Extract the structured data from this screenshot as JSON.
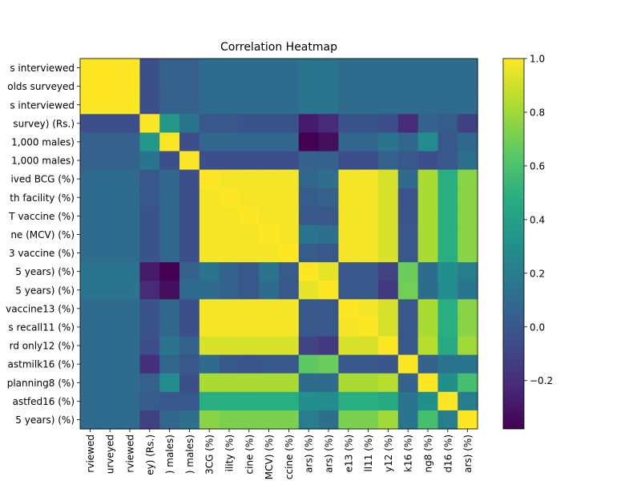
{
  "chart_data": {
    "type": "heatmap",
    "title": "Correlation Heatmap",
    "colormap": "viridis",
    "colorbar": {
      "min": -0.38,
      "max": 1.0,
      "ticks": [
        "1.0",
        "0.8",
        "0.6",
        "0.4",
        "0.2",
        "0.0",
        "−0.2"
      ],
      "tick_values": [
        1.0,
        0.8,
        0.6,
        0.4,
        0.2,
        0.0,
        -0.2
      ]
    },
    "row_labels": [
      "s interviewed",
      "olds surveyed",
      "s interviewed",
      " survey) (Rs.)",
      "1,000 males)",
      "1,000 males)",
      "ived BCG (%)",
      "th facility (%)",
      "T vaccine (%)",
      "ne (MCV) (%)",
      "3 vaccine (%)",
      " 5 years) (%)",
      " 5 years) (%)",
      "vaccine13 (%)",
      "s recall11 (%)",
      "rd only12 (%)",
      "astmilk16 (%)",
      "planning8 (%)",
      "astfed16 (%)",
      " 5 years) (%)"
    ],
    "col_labels": [
      "rviewed",
      "urveyed",
      "rviewed",
      "ey) (Rs.)",
      ") males)",
      ") males)",
      "3CG (%)",
      "ility (%)",
      "cine (%)",
      "MCV) (%)",
      "ccine (%)",
      "ars) (%)",
      "ars) (%)",
      "e13 (%)",
      "ll11 (%)",
      "y12 (%)",
      "k16 (%)",
      "ng8 (%)",
      "d16 (%)",
      "ars) (%)"
    ],
    "values": [
      [
        1.0,
        1.0,
        1.0,
        -0.05,
        0.05,
        0.05,
        0.1,
        0.1,
        0.1,
        0.1,
        0.1,
        0.15,
        0.15,
        0.1,
        0.1,
        0.1,
        0.1,
        0.1,
        0.1,
        0.1
      ],
      [
        1.0,
        1.0,
        1.0,
        -0.05,
        0.05,
        0.05,
        0.1,
        0.1,
        0.1,
        0.1,
        0.1,
        0.15,
        0.15,
        0.1,
        0.1,
        0.1,
        0.1,
        0.1,
        0.1,
        0.1
      ],
      [
        1.0,
        1.0,
        1.0,
        -0.05,
        0.05,
        0.05,
        0.1,
        0.1,
        0.1,
        0.1,
        0.1,
        0.15,
        0.15,
        0.1,
        0.1,
        0.1,
        0.1,
        0.1,
        0.1,
        0.1
      ],
      [
        -0.05,
        -0.05,
        -0.05,
        1.0,
        0.35,
        0.15,
        0.0,
        0.0,
        -0.03,
        -0.03,
        -0.03,
        -0.28,
        -0.22,
        -0.03,
        -0.03,
        -0.05,
        -0.22,
        0.05,
        0.02,
        -0.12
      ],
      [
        0.05,
        0.05,
        0.05,
        0.35,
        1.0,
        -0.05,
        0.08,
        0.08,
        0.08,
        0.08,
        0.08,
        -0.38,
        -0.33,
        0.08,
        0.08,
        0.15,
        0.08,
        0.28,
        0.0,
        0.08
      ],
      [
        0.05,
        0.05,
        0.05,
        0.15,
        -0.05,
        1.0,
        -0.05,
        -0.05,
        -0.05,
        -0.05,
        -0.05,
        0.05,
        0.05,
        -0.05,
        -0.05,
        0.05,
        0.0,
        -0.05,
        0.0,
        0.12
      ],
      [
        0.1,
        0.1,
        0.1,
        0.0,
        0.08,
        -0.05,
        1.0,
        0.98,
        0.98,
        0.98,
        0.98,
        0.08,
        0.12,
        0.98,
        0.98,
        0.92,
        0.1,
        0.82,
        0.48,
        0.75
      ],
      [
        0.1,
        0.1,
        0.1,
        0.0,
        0.08,
        -0.05,
        0.98,
        1.0,
        0.98,
        0.98,
        0.98,
        0.02,
        0.05,
        0.98,
        0.98,
        0.92,
        -0.02,
        0.82,
        0.48,
        0.75
      ],
      [
        0.1,
        0.1,
        0.1,
        -0.03,
        0.08,
        -0.05,
        0.98,
        0.98,
        1.0,
        0.98,
        0.98,
        0.0,
        0.0,
        0.98,
        0.98,
        0.92,
        -0.02,
        0.82,
        0.48,
        0.75
      ],
      [
        0.1,
        0.1,
        0.1,
        -0.03,
        0.08,
        -0.05,
        0.98,
        0.98,
        0.98,
        1.0,
        0.98,
        0.15,
        0.12,
        0.98,
        0.98,
        0.92,
        0.0,
        0.82,
        0.48,
        0.75
      ],
      [
        0.1,
        0.1,
        0.1,
        -0.03,
        0.08,
        -0.05,
        0.98,
        0.98,
        0.98,
        0.98,
        1.0,
        0.02,
        0.0,
        0.98,
        0.98,
        0.92,
        0.0,
        0.82,
        0.48,
        0.75
      ],
      [
        0.15,
        0.15,
        0.15,
        -0.28,
        -0.38,
        0.05,
        0.15,
        0.05,
        0.0,
        0.15,
        0.02,
        1.0,
        0.95,
        0.0,
        0.0,
        -0.1,
        0.68,
        0.1,
        0.3,
        0.2
      ],
      [
        0.15,
        0.15,
        0.15,
        -0.22,
        -0.33,
        0.1,
        0.1,
        0.05,
        0.0,
        0.1,
        0.0,
        0.95,
        1.0,
        0.0,
        0.0,
        -0.15,
        0.7,
        0.1,
        0.28,
        0.15
      ],
      [
        0.1,
        0.1,
        0.1,
        -0.03,
        0.08,
        -0.05,
        0.98,
        0.98,
        0.98,
        0.98,
        0.98,
        0.0,
        0.0,
        1.0,
        0.98,
        0.92,
        0.0,
        0.82,
        0.48,
        0.75
      ],
      [
        0.1,
        0.1,
        0.1,
        -0.03,
        0.08,
        -0.05,
        0.98,
        0.98,
        0.98,
        0.98,
        0.98,
        0.0,
        0.0,
        0.98,
        1.0,
        0.92,
        0.0,
        0.82,
        0.48,
        0.75
      ],
      [
        0.1,
        0.1,
        0.1,
        -0.05,
        0.15,
        0.05,
        0.92,
        0.92,
        0.92,
        0.92,
        0.92,
        -0.1,
        -0.15,
        0.92,
        0.92,
        1.0,
        0.0,
        0.85,
        0.45,
        0.8
      ],
      [
        0.1,
        0.1,
        0.1,
        -0.2,
        0.08,
        0.0,
        0.1,
        0.0,
        -0.02,
        0.0,
        0.0,
        0.65,
        0.68,
        0.0,
        0.0,
        -0.02,
        1.0,
        0.05,
        0.15,
        0.15
      ],
      [
        0.1,
        0.1,
        0.1,
        0.05,
        0.28,
        -0.05,
        0.82,
        0.82,
        0.82,
        0.82,
        0.82,
        0.1,
        0.1,
        0.82,
        0.82,
        0.85,
        0.05,
        1.0,
        0.3,
        0.58
      ],
      [
        0.1,
        0.1,
        0.1,
        0.02,
        0.0,
        0.0,
        0.48,
        0.48,
        0.48,
        0.48,
        0.48,
        0.3,
        0.28,
        0.48,
        0.48,
        0.45,
        0.15,
        0.3,
        1.0,
        0.2
      ],
      [
        0.1,
        0.1,
        0.1,
        -0.12,
        0.08,
        0.12,
        0.75,
        0.72,
        0.72,
        0.72,
        0.72,
        0.2,
        0.12,
        0.72,
        0.72,
        0.8,
        0.15,
        0.58,
        0.2,
        1.0
      ]
    ]
  }
}
